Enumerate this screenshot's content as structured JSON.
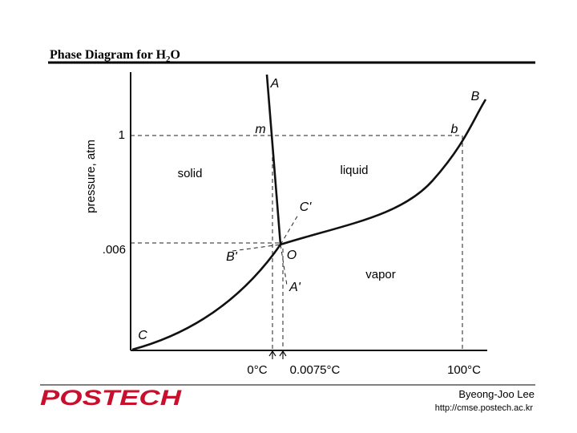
{
  "header": {
    "title": "Phase Diagram for H",
    "title_subscript": "2",
    "title_suffix": "O"
  },
  "diagram": {
    "y_axis_label": "pressure, atm",
    "y_labels": [
      "1",
      ".006"
    ],
    "x_labels": [
      "0°C",
      "0.0075°C",
      "100°C"
    ],
    "regions": [
      "solid",
      "liquid",
      "vapor"
    ],
    "points": [
      "A",
      "B",
      "m",
      "b",
      "C'",
      "C",
      "B'",
      "O",
      "A'"
    ]
  },
  "footer": {
    "logo": "POSTECH",
    "author": "Byeong-Joo Lee",
    "url": "http://cmse.postech.ac.kr"
  }
}
